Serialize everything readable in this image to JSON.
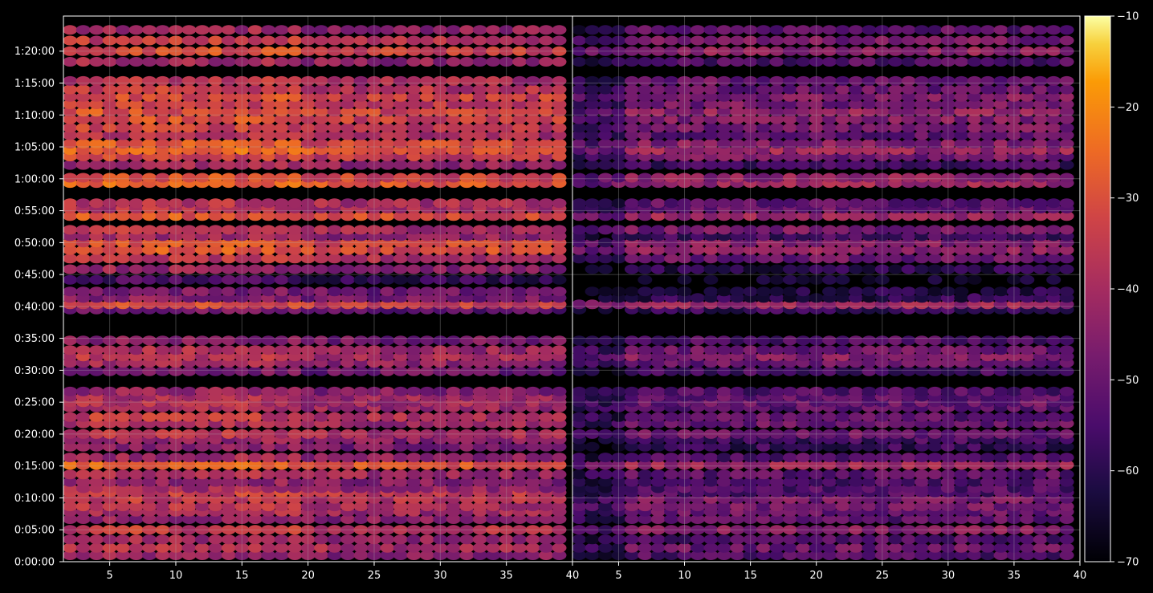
{
  "chart_data": {
    "type": "heatmap",
    "title": "",
    "xlabel": "",
    "ylabel": "",
    "panels": [
      {
        "name": "",
        "xlim": [
          1.5,
          40
        ],
        "x_ticks": [
          5,
          10,
          15,
          20,
          25,
          30,
          35,
          40
        ],
        "y_range": [
          0,
          5130
        ]
      },
      {
        "name": "",
        "xlim": [
          1.5,
          40
        ],
        "x_ticks": [
          5,
          10,
          15,
          20,
          25,
          30,
          35,
          40
        ],
        "y_range": [
          0,
          5130
        ]
      }
    ],
    "shared_y": true,
    "y_ticks": [
      {
        "value": 0,
        "label": "0:00:00"
      },
      {
        "value": 300,
        "label": "0:05:00"
      },
      {
        "value": 600,
        "label": "0:10:00"
      },
      {
        "value": 900,
        "label": "0:15:00"
      },
      {
        "value": 1200,
        "label": "0:20:00"
      },
      {
        "value": 1500,
        "label": "0:25:00"
      },
      {
        "value": 1800,
        "label": "0:30:00"
      },
      {
        "value": 2100,
        "label": "0:35:00"
      },
      {
        "value": 2400,
        "label": "0:40:00"
      },
      {
        "value": 2700,
        "label": "0:45:00"
      },
      {
        "value": 3000,
        "label": "0:50:00"
      },
      {
        "value": 3300,
        "label": "0:55:00"
      },
      {
        "value": 3600,
        "label": "1:00:00"
      },
      {
        "value": 3900,
        "label": "1:05:00"
      },
      {
        "value": 4200,
        "label": "1:10:00"
      },
      {
        "value": 4500,
        "label": "1:15:00"
      },
      {
        "value": 4800,
        "label": "1:20:00"
      }
    ],
    "grid": true,
    "colormap": "inferno",
    "colorbar": {
      "vmin": -70,
      "vmax": -10,
      "ticks": [
        -10,
        -20,
        -30,
        -40,
        -50,
        -60,
        -70
      ],
      "tick_labels": [
        "−10",
        "−20",
        "−30",
        "−40",
        "−50",
        "−60",
        "−70"
      ]
    },
    "band_times": [
      60,
      130,
      210,
      300,
      400,
      470,
      520,
      590,
      650,
      690,
      750,
      820,
      910,
      980,
      1080,
      1150,
      1200,
      1300,
      1360,
      1450,
      1500,
      1550,
      1600,
      1790,
      1870,
      1930,
      1990,
      2080,
      2370,
      2420,
      2480,
      2540,
      2650,
      2750,
      2850,
      2930,
      3000,
      3060,
      3120,
      3250,
      3320,
      3370,
      3560,
      3610,
      3730,
      3810,
      3870,
      3930,
      4010,
      4080,
      4160,
      4230,
      4300,
      4370,
      4440,
      4520,
      4700,
      4800,
      4900,
      5000
    ],
    "band_levels_left": [
      -46,
      -40,
      -44,
      -38,
      -46,
      -42,
      -40,
      -38,
      -37,
      -43,
      -46,
      -42,
      -30,
      -44,
      -48,
      -46,
      -40,
      -42,
      -38,
      -42,
      -40,
      -42,
      -46,
      -50,
      -44,
      -40,
      -42,
      -48,
      -52,
      -35,
      -48,
      -50,
      -58,
      -45,
      -40,
      -32,
      -32,
      -44,
      -40,
      -32,
      -40,
      -40,
      -30,
      -33,
      -44,
      -36,
      -28,
      -32,
      -40,
      -36,
      -34,
      -33,
      -36,
      -34,
      -38,
      -40,
      -44,
      -34,
      -38,
      -44
    ],
    "band_levels_right": [
      -54,
      -50,
      -54,
      -46,
      -52,
      -50,
      -48,
      -48,
      -54,
      -54,
      -54,
      -52,
      -42,
      -54,
      -58,
      -56,
      -50,
      -50,
      -52,
      -52,
      -50,
      -52,
      -54,
      -56,
      -50,
      -46,
      -50,
      -54,
      -58,
      -42,
      -60,
      -62,
      -66,
      -60,
      -50,
      -44,
      -46,
      -56,
      -48,
      -42,
      -50,
      -52,
      -42,
      -44,
      -56,
      -48,
      -42,
      -46,
      -52,
      -48,
      -46,
      -44,
      -48,
      -46,
      -50,
      -50,
      -54,
      -44,
      -48,
      -52
    ]
  }
}
